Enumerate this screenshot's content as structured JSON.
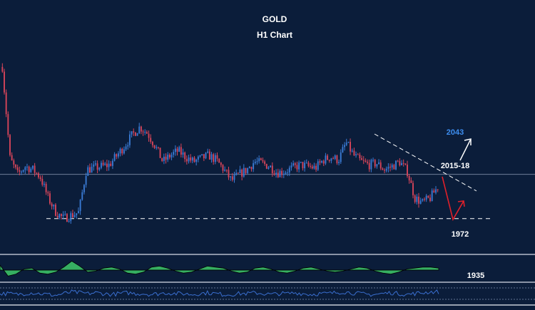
{
  "title": "GOLD",
  "subtitle": "H1 Chart",
  "colors": {
    "background": "#0b1d3a",
    "bull": "#3a7bd5",
    "bear": "#d8455a",
    "text": "#ffffff",
    "target_text": "#3d8ef0",
    "projection_up": "#ffffff",
    "projection_down": "#e0202a",
    "trendline": "#ffffff",
    "hline": "#6f7f99",
    "osc_fill": "#3ec96a",
    "rsi_line": "#3a6fd0",
    "separator": "#8a94a6"
  },
  "chart_data": {
    "type": "candlestick",
    "title": "GOLD",
    "subtitle": "H1 Chart",
    "annotations": [
      {
        "text": "2043",
        "role": "upside target"
      },
      {
        "text": "2015-18",
        "role": "resistance"
      },
      {
        "text": "1972",
        "role": "support"
      },
      {
        "text": "1935",
        "role": "lower support"
      }
    ],
    "price_path": [
      2068,
      2010,
      2000,
      2005,
      2003,
      1998,
      1985,
      1976,
      1972,
      1974,
      1976,
      2003,
      2004,
      2005,
      2006,
      2012,
      2018,
      2025,
      2030,
      2026,
      2018,
      2008,
      2012,
      2015,
      2011,
      2008,
      2010,
      2012,
      2009,
      2003,
      1996,
      2000,
      2003,
      2008,
      2007,
      2005,
      2001,
      2002,
      2004,
      2006,
      2005,
      2004,
      2009,
      2011,
      2009,
      2020,
      2012,
      2008,
      2006,
      2007,
      2003,
      2005,
      2008,
      2002,
      1985,
      1982,
      1985,
      1992
    ],
    "osc_path": [
      0.5,
      -0.6,
      -0.4,
      0.1,
      0.2,
      -0.3,
      -0.4,
      -0.2,
      0.3,
      0.9,
      0.4,
      -0.2,
      -0.1,
      0.2,
      0.3,
      0.1,
      -0.3,
      -0.4,
      -0.2,
      0.3,
      0.4,
      0.2,
      -0.1,
      -0.3,
      -0.2,
      0.1,
      0.4,
      0.3,
      0.2,
      -0.1,
      -0.3,
      -0.2,
      0.2,
      0.3,
      0.1,
      -0.2,
      -0.3,
      -0.1,
      0.2,
      0.3,
      0.1,
      -0.1,
      -0.2,
      -0.1,
      0.1,
      0.3,
      0.2,
      -0.1,
      -0.3,
      -0.4,
      -0.2,
      0.1,
      0.2,
      0.3,
      0.3,
      0.2
    ],
    "rsi_path": [
      0.5,
      0.5,
      0.45,
      0.5,
      0.55,
      0.5,
      0.45,
      0.4,
      0.5,
      0.6,
      0.55,
      0.5,
      0.55,
      0.5,
      0.45,
      0.5,
      0.55,
      0.5,
      0.5,
      0.45,
      0.5,
      0.55,
      0.5,
      0.5,
      0.45,
      0.5,
      0.55,
      0.5,
      0.45,
      0.45,
      0.5,
      0.5,
      0.55,
      0.5,
      0.45,
      0.5,
      0.5,
      0.55,
      0.5,
      0.45,
      0.5,
      0.5,
      0.55,
      0.6,
      0.55,
      0.5,
      0.45,
      0.45,
      0.5,
      0.55,
      0.5,
      0.45,
      0.5,
      0.55,
      0.6,
      0.6
    ],
    "y_range": [
      1966,
      2072
    ],
    "horizontal_lines": [
      1972,
      2000
    ]
  }
}
